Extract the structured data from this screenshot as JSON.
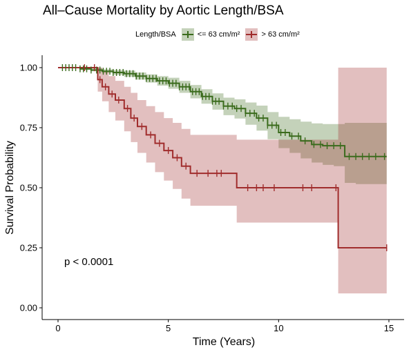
{
  "chart_data": {
    "type": "line",
    "subtype": "kaplan-meier survival curve with confidence bands",
    "title": "All–Cause Mortality by Aortic Length/BSA",
    "xlabel": "Time (Years)",
    "ylabel": "Survival Probability",
    "xlim": [
      0,
      15
    ],
    "ylim": [
      0,
      1
    ],
    "x_ticks": [
      0,
      5,
      10,
      15
    ],
    "x_tick_labels": [
      "0",
      "5",
      "10",
      "15"
    ],
    "y_ticks": [
      0,
      0.25,
      0.5,
      0.75,
      1.0
    ],
    "y_tick_labels": [
      "0.00",
      "0.25",
      "0.50",
      "0.75",
      "1.00"
    ],
    "grid": false,
    "legend": {
      "title": "Length/BSA",
      "position": "top",
      "entries": [
        "<= 63 cm/m²",
        "> 63 cm/m²"
      ]
    },
    "annotation": "p < 0.0001",
    "series": [
      {
        "name": "<= 63 cm/m²",
        "color": "#3a6b1c",
        "band_color": "#3a6b1c",
        "x": [
          0,
          0.5,
          1.0,
          1.5,
          2.0,
          2.5,
          3.0,
          3.5,
          4.0,
          4.5,
          5.0,
          5.5,
          6.0,
          6.5,
          7.0,
          7.5,
          8.0,
          8.5,
          9.0,
          9.5,
          10.0,
          10.5,
          11.0,
          11.5,
          12.0,
          12.5,
          13.0,
          13.5,
          14.0,
          14.5,
          14.9
        ],
        "y": [
          1.0,
          1.0,
          0.995,
          0.99,
          0.985,
          0.98,
          0.975,
          0.965,
          0.955,
          0.945,
          0.935,
          0.92,
          0.9,
          0.88,
          0.86,
          0.84,
          0.83,
          0.81,
          0.79,
          0.76,
          0.73,
          0.715,
          0.695,
          0.68,
          0.675,
          0.675,
          0.63,
          0.63,
          0.63,
          0.63,
          0.63
        ],
        "ci_lower": [
          1.0,
          1.0,
          0.99,
          0.985,
          0.978,
          0.97,
          0.962,
          0.95,
          0.938,
          0.925,
          0.912,
          0.895,
          0.872,
          0.85,
          0.825,
          0.802,
          0.788,
          0.762,
          0.738,
          0.702,
          0.665,
          0.645,
          0.622,
          0.605,
          0.595,
          0.59,
          0.52,
          0.515,
          0.515,
          0.515,
          0.515
        ],
        "ci_upper": [
          1.0,
          1.0,
          1.0,
          0.998,
          0.993,
          0.99,
          0.988,
          0.98,
          0.972,
          0.965,
          0.958,
          0.945,
          0.928,
          0.91,
          0.893,
          0.875,
          0.868,
          0.855,
          0.842,
          0.815,
          0.795,
          0.785,
          0.775,
          0.768,
          0.765,
          0.765,
          0.77,
          0.77,
          0.77,
          0.77,
          0.77
        ],
        "censor_x": [
          0.2,
          0.35,
          0.5,
          0.65,
          0.8,
          1.0,
          1.15,
          1.3,
          1.5,
          1.75,
          1.9,
          2.05,
          2.2,
          2.35,
          2.5,
          2.65,
          2.8,
          2.95,
          3.1,
          3.25,
          3.4,
          3.55,
          3.7,
          3.85,
          4.0,
          4.15,
          4.3,
          4.45,
          4.6,
          4.75,
          4.9,
          5.05,
          5.2,
          5.35,
          5.5,
          5.65,
          5.8,
          5.95,
          6.1,
          6.25,
          6.4,
          6.55,
          6.7,
          6.85,
          7.0,
          7.15,
          7.3,
          7.5,
          7.7,
          7.9,
          8.1,
          8.3,
          8.5,
          8.7,
          8.9,
          9.1,
          9.3,
          9.5,
          9.7,
          9.9,
          10.1,
          10.3,
          10.6,
          10.9,
          11.2,
          11.6,
          11.9,
          12.2,
          12.5,
          12.8,
          13.2,
          13.5,
          13.8,
          14.1,
          14.4,
          14.8
        ]
      },
      {
        "name": "> 63 cm/m²",
        "color": "#a02c2c",
        "band_color": "#a02c2c",
        "x": [
          0,
          1.6,
          1.8,
          2.0,
          2.3,
          2.6,
          3.0,
          3.3,
          3.6,
          4.0,
          4.4,
          4.8,
          5.2,
          5.6,
          6.0,
          8.1,
          12.7,
          14.9
        ],
        "y": [
          1.0,
          1.0,
          0.95,
          0.92,
          0.89,
          0.865,
          0.83,
          0.79,
          0.755,
          0.72,
          0.685,
          0.655,
          0.625,
          0.59,
          0.56,
          0.5,
          0.25,
          0.25
        ],
        "ci_lower": [
          1.0,
          1.0,
          0.9,
          0.86,
          0.815,
          0.78,
          0.735,
          0.69,
          0.645,
          0.605,
          0.565,
          0.53,
          0.495,
          0.455,
          0.425,
          0.355,
          0.06,
          0.06
        ],
        "ci_upper": [
          1.0,
          1.0,
          1.0,
          0.985,
          0.965,
          0.945,
          0.92,
          0.895,
          0.865,
          0.84,
          0.815,
          0.79,
          0.77,
          0.745,
          0.72,
          0.7,
          1.0,
          1.0
        ],
        "censor_x": [
          1.2,
          1.65,
          1.9,
          2.15,
          2.45,
          2.75,
          3.15,
          3.45,
          3.8,
          4.2,
          4.6,
          5.0,
          5.4,
          5.8,
          6.3,
          6.8,
          7.2,
          7.4,
          8.6,
          9.0,
          9.3,
          9.8,
          11.1,
          11.5,
          12.6,
          14.9
        ]
      }
    ]
  }
}
